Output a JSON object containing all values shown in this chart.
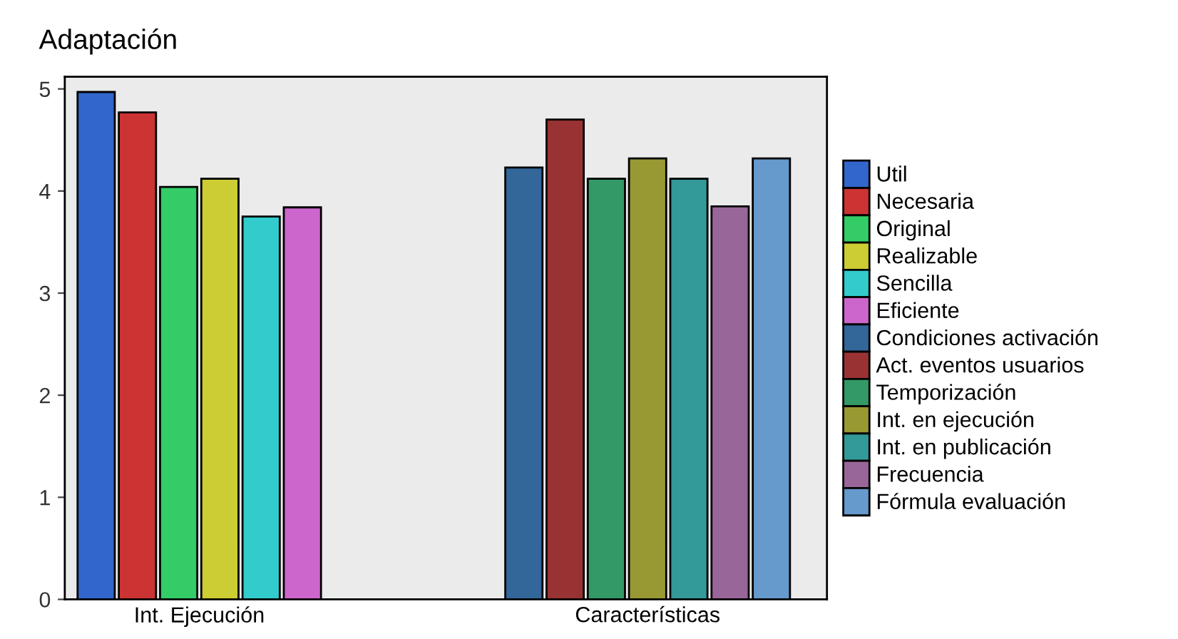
{
  "chart_data": {
    "type": "bar",
    "title": "Adaptación",
    "categories": [
      "Int. Ejecución",
      "Características"
    ],
    "series": [
      {
        "name": "Util",
        "color": "#3366cc",
        "values": [
          4.97,
          null
        ]
      },
      {
        "name": "Necesaria",
        "color": "#cc3333",
        "values": [
          4.77,
          null
        ]
      },
      {
        "name": "Original",
        "color": "#33cc66",
        "values": [
          4.04,
          null
        ]
      },
      {
        "name": "Realizable",
        "color": "#cccc33",
        "values": [
          4.12,
          null
        ]
      },
      {
        "name": "Sencilla",
        "color": "#33cccc",
        "values": [
          3.75,
          null
        ]
      },
      {
        "name": "Eficiente",
        "color": "#cc66cc",
        "values": [
          3.84,
          null
        ]
      },
      {
        "name": "Condiciones activación",
        "color": "#336699",
        "values": [
          null,
          4.23
        ]
      },
      {
        "name": "Act. eventos usuarios",
        "color": "#993333",
        "values": [
          null,
          4.7
        ]
      },
      {
        "name": "Temporización",
        "color": "#339966",
        "values": [
          null,
          4.12
        ]
      },
      {
        "name": "Int. en ejecución",
        "color": "#999933",
        "values": [
          null,
          4.32
        ]
      },
      {
        "name": "Int. en publicación",
        "color": "#339999",
        "values": [
          null,
          4.12
        ]
      },
      {
        "name": "Frecuencia",
        "color": "#996699",
        "values": [
          null,
          3.85
        ]
      },
      {
        "name": "Fórmula evaluación",
        "color": "#6699cc",
        "values": [
          null,
          4.32
        ]
      }
    ],
    "ylim": [
      0,
      5.12
    ],
    "yticks": [
      0,
      1,
      2,
      3,
      4,
      5
    ],
    "grid": false,
    "legend": "right"
  }
}
